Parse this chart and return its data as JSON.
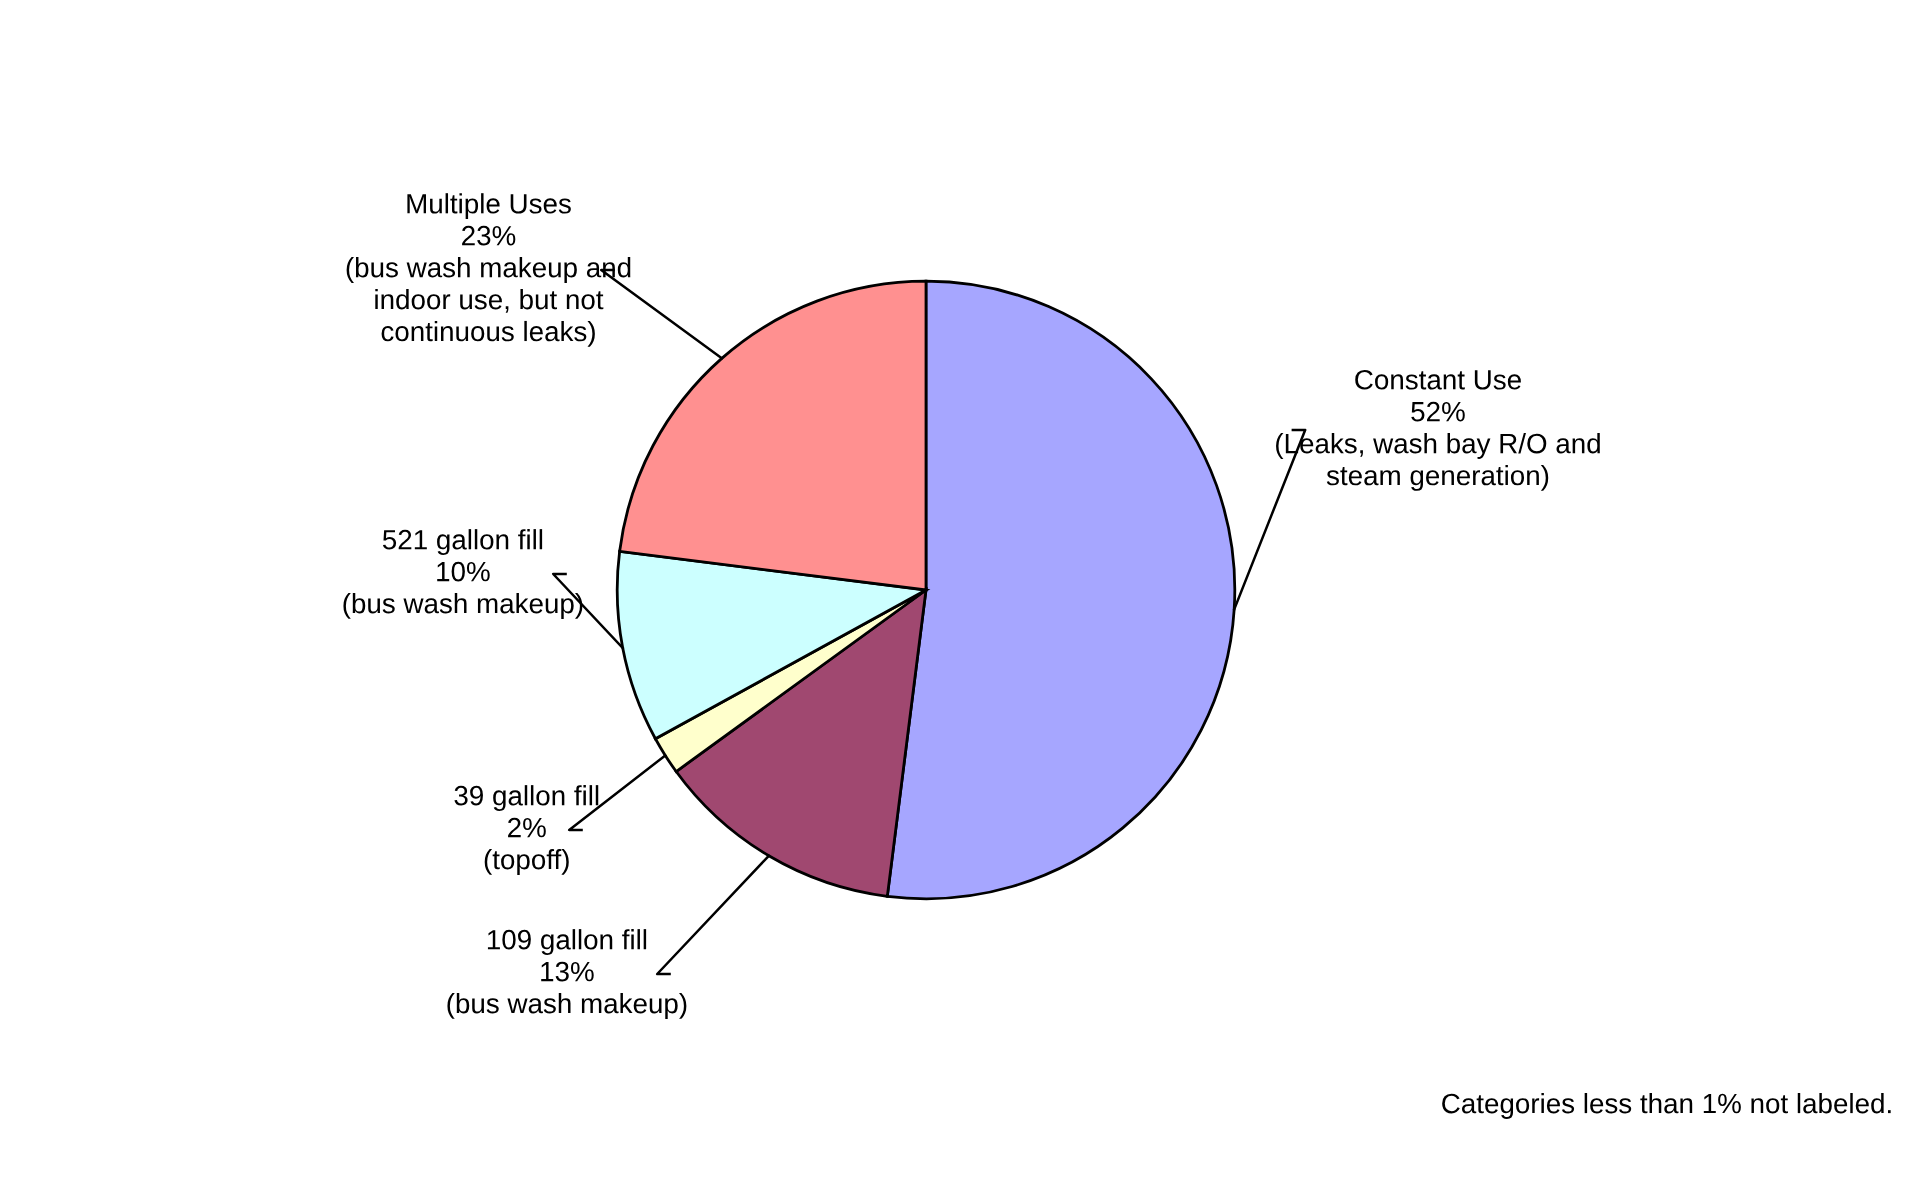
{
  "chart_data": {
    "type": "pie",
    "categories": [
      "Constant Use",
      "109 gallon fill",
      "39 gallon fill",
      "521 gallon fill",
      "Multiple Uses"
    ],
    "values": [
      52,
      13,
      2,
      10,
      23
    ],
    "value_labels": [
      "52%",
      "13%",
      "2%",
      "10%",
      "23%"
    ],
    "colors": [
      "#a6a6ff",
      "#a04870",
      "#ffffcc",
      "#ccffff",
      "#ff9090"
    ],
    "annotations": [
      {
        "text": "(Leaks, wash bay R/O and\nsteam generation)",
        "x": "Constant Use"
      },
      {
        "text": "(bus wash makeup)",
        "x": "109 gallon fill"
      },
      {
        "text": "(topoff)",
        "x": "39 gallon fill"
      },
      {
        "text": "(bus wash makeup)",
        "x": "521 gallon fill"
      },
      {
        "text": "(bus wash makeup and\nindoor use, but not\ncontinuous leaks)",
        "x": "Multiple Uses"
      },
      "Categories less than 1% not labeled."
    ],
    "legend": false
  }
}
